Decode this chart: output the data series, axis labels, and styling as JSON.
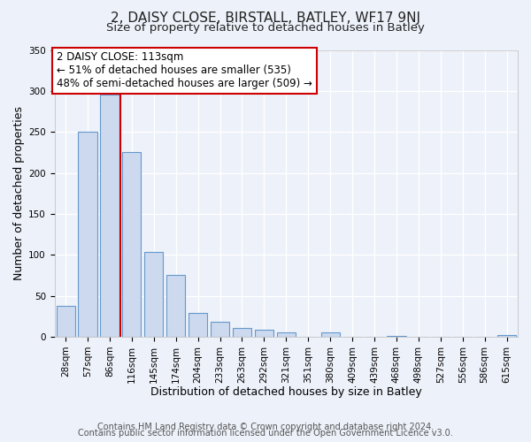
{
  "title": "2, DAISY CLOSE, BIRSTALL, BATLEY, WF17 9NJ",
  "subtitle": "Size of property relative to detached houses in Batley",
  "xlabel": "Distribution of detached houses by size in Batley",
  "ylabel": "Number of detached properties",
  "bar_color": "#ccd9ee",
  "bar_edge_color": "#6699cc",
  "bin_labels": [
    "28sqm",
    "57sqm",
    "86sqm",
    "116sqm",
    "145sqm",
    "174sqm",
    "204sqm",
    "233sqm",
    "263sqm",
    "292sqm",
    "321sqm",
    "351sqm",
    "380sqm",
    "409sqm",
    "439sqm",
    "468sqm",
    "498sqm",
    "527sqm",
    "556sqm",
    "586sqm",
    "615sqm"
  ],
  "bar_heights": [
    38,
    250,
    295,
    225,
    104,
    76,
    29,
    18,
    11,
    9,
    5,
    0,
    5,
    0,
    0,
    1,
    0,
    0,
    0,
    0,
    2
  ],
  "vline_color": "#cc0000",
  "vline_bar_index": 2.5,
  "annotation_text": "2 DAISY CLOSE: 113sqm\n← 51% of detached houses are smaller (535)\n48% of semi-detached houses are larger (509) →",
  "annotation_box_facecolor": "#ffffff",
  "annotation_box_edgecolor": "#cc0000",
  "ylim": [
    0,
    350
  ],
  "yticks": [
    0,
    50,
    100,
    150,
    200,
    250,
    300,
    350
  ],
  "background_color": "#edf1f9",
  "grid_color": "#ffffff",
  "title_fontsize": 11,
  "subtitle_fontsize": 9.5,
  "axis_label_fontsize": 9,
  "tick_fontsize": 7.5,
  "annotation_fontsize": 8.5,
  "footer_fontsize": 7,
  "footer_line1": "Contains HM Land Registry data © Crown copyright and database right 2024.",
  "footer_line2": "Contains public sector information licensed under the Open Government Licence v3.0."
}
